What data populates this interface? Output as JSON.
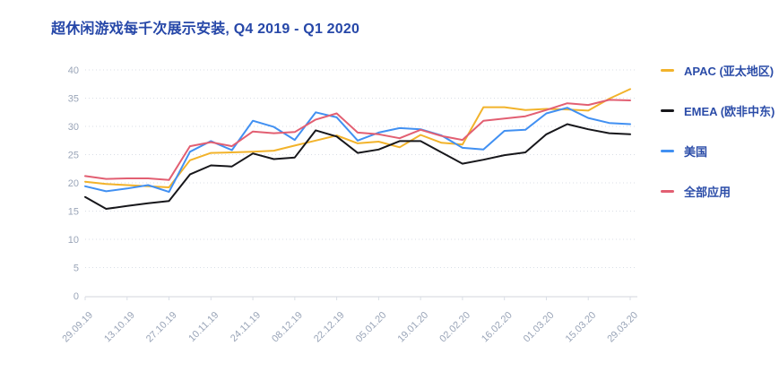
{
  "title": "超休闲游戏每千次展示安装, Q4 2019 - Q1 2020",
  "legend": {
    "items": [
      {
        "label": "APAC (亚太地区)",
        "color": "#f2b32b"
      },
      {
        "label": "EMEA (欧非中东)",
        "color": "#17171b"
      },
      {
        "label": "美国",
        "color": "#4190f2"
      },
      {
        "label": "全部应用",
        "color": "#e25f72"
      }
    ]
  },
  "axis_colors": {
    "tick_text": "#9aa5b8",
    "grid": "#d9dee6",
    "axis_line": "#e2e4e8"
  },
  "chart_data": {
    "type": "line",
    "title": "超休闲游戏每千次展示安装, Q4 2019 - Q1 2020",
    "x": [
      "29.09.19",
      "06.10.19",
      "13.10.19",
      "20.10.19",
      "27.10.19",
      "03.11.19",
      "10.11.19",
      "17.11.19",
      "24.11.19",
      "01.12.19",
      "08.12.19",
      "15.12.19",
      "22.12.19",
      "29.12.19",
      "05.01.20",
      "12.01.20",
      "19.01.20",
      "26.01.20",
      "02.02.20",
      "09.02.20",
      "16.02.20",
      "23.02.20",
      "01.03.20",
      "08.03.20",
      "15.03.20",
      "22.03.20",
      "29.03.20"
    ],
    "x_tick_labels": [
      "29.09.19",
      "13.10.19",
      "27.10.19",
      "10.11.19",
      "24.11.19",
      "08.12.19",
      "22.12.19",
      "05.01.20",
      "19.01.20",
      "02.02.20",
      "16.02.20",
      "01.03.20",
      "15.03.20",
      "29.03.20"
    ],
    "x_label_every": 2,
    "series": [
      {
        "name": "APAC (亚太地区)",
        "color": "#f2b32b",
        "values": [
          20.2,
          19.8,
          19.6,
          19.4,
          19.2,
          24.0,
          25.3,
          25.4,
          25.5,
          25.7,
          26.6,
          27.5,
          28.4,
          27.0,
          27.3,
          26.3,
          28.5,
          27.1,
          26.8,
          33.4,
          33.4,
          32.9,
          33.1,
          33.0,
          32.8,
          34.9,
          36.6
        ]
      },
      {
        "name": "EMEA (欧非中东)",
        "color": "#17171b",
        "values": [
          17.5,
          15.4,
          15.9,
          16.4,
          16.8,
          21.5,
          23.1,
          22.9,
          25.2,
          24.2,
          24.5,
          29.3,
          28.2,
          25.3,
          25.9,
          27.4,
          27.4,
          25.4,
          23.4,
          24.1,
          24.9,
          25.4,
          28.6,
          30.4,
          29.5,
          28.8,
          28.6
        ]
      },
      {
        "name": "美国",
        "color": "#4190f2",
        "values": [
          19.4,
          18.5,
          19.0,
          19.6,
          18.4,
          25.5,
          27.4,
          25.8,
          31.0,
          29.9,
          27.6,
          32.5,
          31.6,
          27.5,
          28.9,
          29.7,
          29.5,
          28.4,
          26.2,
          25.9,
          29.2,
          29.4,
          32.3,
          33.3,
          31.5,
          30.6,
          30.4
        ]
      },
      {
        "name": "全部应用",
        "color": "#e25f72",
        "values": [
          21.2,
          20.7,
          20.8,
          20.8,
          20.5,
          26.5,
          27.2,
          26.5,
          29.1,
          28.8,
          29.0,
          31.2,
          32.3,
          28.9,
          28.6,
          27.9,
          29.4,
          28.3,
          27.6,
          31.0,
          31.4,
          31.8,
          32.9,
          34.1,
          33.8,
          34.7,
          34.6
        ]
      }
    ],
    "ylim": [
      0,
      40
    ],
    "y_ticks": [
      0,
      5,
      10,
      15,
      20,
      25,
      30,
      35,
      40
    ],
    "grid": "horizontal-dotted",
    "legend_position": "right"
  }
}
